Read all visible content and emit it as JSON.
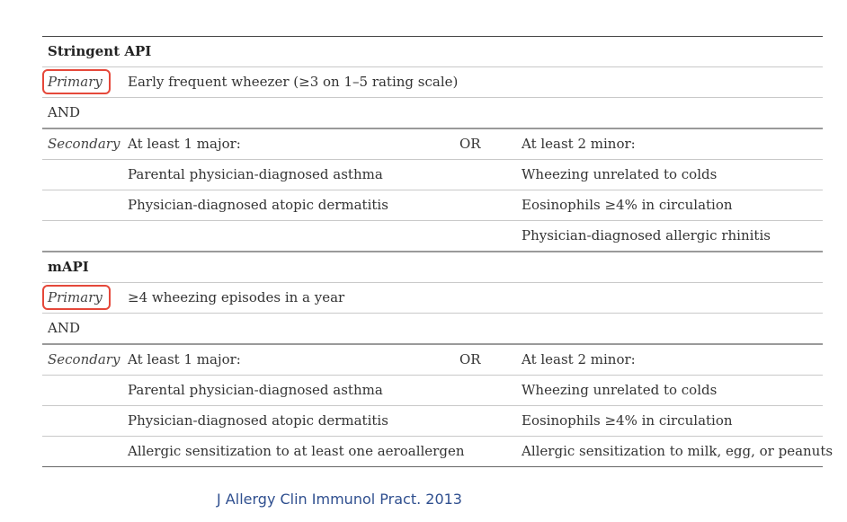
{
  "sections": [
    {
      "title": "Stringent API",
      "primary_label": "Primary",
      "primary_criterion": "Early frequent wheezer (≥3 on 1–5 rating scale)",
      "connector": "AND",
      "secondary_label": "Secondary",
      "major_header": "At least 1 major:",
      "or_label": "OR",
      "minor_header": "At least 2 minor:",
      "pairs": [
        {
          "major": "Parental physician-diagnosed asthma",
          "minor": "Wheezing unrelated to colds"
        },
        {
          "major": "Physician-diagnosed atopic dermatitis",
          "minor": "Eosinophils ≥4% in circulation"
        },
        {
          "major": "",
          "minor": "Physician-diagnosed allergic rhinitis"
        }
      ]
    },
    {
      "title": "mAPI",
      "primary_label": "Primary",
      "primary_criterion": "≥4 wheezing episodes in a year",
      "connector": "AND",
      "secondary_label": "Secondary",
      "major_header": "At least 1 major:",
      "or_label": "OR",
      "minor_header": "At least 2 minor:",
      "pairs": [
        {
          "major": "Parental physician-diagnosed asthma",
          "minor": "Wheezing unrelated to colds"
        },
        {
          "major": "Physician-diagnosed atopic dermatitis",
          "minor": "Eosinophils ≥4% in circulation"
        },
        {
          "major": "Allergic sensitization to at least one aeroallergen",
          "minor": "Allergic sensitization to milk, egg, or peanuts"
        }
      ]
    }
  ],
  "citation": "J Allergy Clin Immunol Pract. 2013",
  "colors": {
    "highlight_box": "#e5483a",
    "citation_text": "#2f4f8f"
  }
}
